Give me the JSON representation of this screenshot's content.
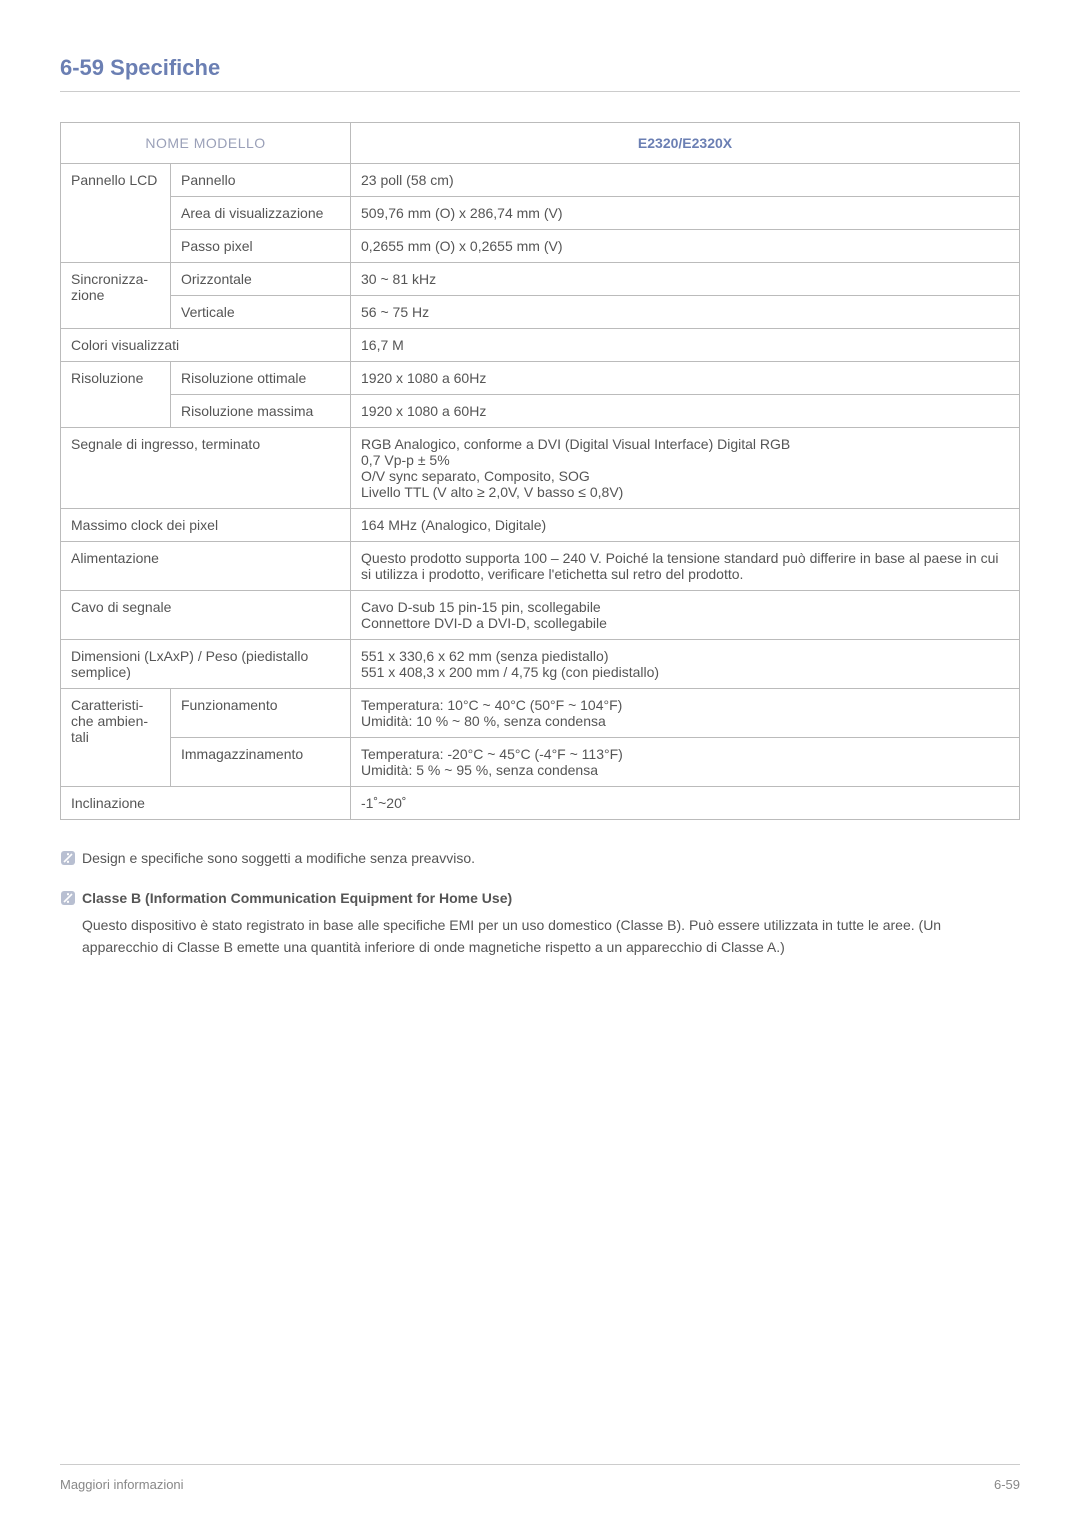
{
  "title": "6-59  Specifiche",
  "table": {
    "header_left": "NOME MODELLO",
    "header_right": "E2320/E2320X",
    "col_widths": {
      "c1": "110px",
      "c2": "180px"
    },
    "border_color": "#bbbbbb",
    "header_left_color": "#9aa0b8",
    "header_right_color": "#6b7fb3",
    "rows": [
      {
        "l1": "Pannello LCD",
        "l1_rowspan": 3,
        "l2": "Pannello",
        "val": "23 poll (58 cm)"
      },
      {
        "l2": "Area di visualizzazione",
        "val": "509,76 mm (O) x 286,74 mm (V)"
      },
      {
        "l2": "Passo pixel",
        "val": "0,2655 mm (O) x 0,2655 mm (V)"
      },
      {
        "l1": "Sincronizza-\nzione",
        "l1_rowspan": 2,
        "l2": "Orizzontale",
        "val": "30 ~ 81 kHz"
      },
      {
        "l2": "Verticale",
        "val": "56 ~ 75 Hz"
      },
      {
        "l1": "Colori visualizzati",
        "l1_colspan": 2,
        "val": "16,7 M"
      },
      {
        "l1": "Risoluzione",
        "l1_rowspan": 2,
        "l2": "Risoluzione ottimale",
        "val": "1920 x 1080 a 60Hz"
      },
      {
        "l2": "Risoluzione massima",
        "val": "1920 x 1080 a 60Hz"
      },
      {
        "l1": "Segnale di ingresso, terminato",
        "l1_colspan": 2,
        "val": "RGB Analogico, conforme a DVI (Digital Visual Interface) Digital RGB\n0,7 Vp-p ± 5%\nO/V sync separato, Composito, SOG\nLivello TTL (V alto ≥ 2,0V, V basso ≤ 0,8V)"
      },
      {
        "l1": "Massimo clock dei pixel",
        "l1_colspan": 2,
        "val": "164 MHz (Analogico, Digitale)"
      },
      {
        "l1": "Alimentazione",
        "l1_colspan": 2,
        "val": "Questo prodotto supporta 100 – 240 V. Poiché la tensione standard può differire in base al paese in cui si utilizza i prodotto, verificare l'etichetta sul retro del prodotto."
      },
      {
        "l1": "Cavo di segnale",
        "l1_colspan": 2,
        "val": "Cavo D-sub 15 pin-15 pin, scollegabile\nConnettore DVI-D a DVI-D, scollegabile"
      },
      {
        "l1": "Dimensioni (LxAxP) / Peso (piedistallo semplice)",
        "l1_colspan": 2,
        "val": "551 x 330,6 x 62 mm (senza piedistallo)\n551 x 408,3 x 200 mm / 4,75 kg (con piedistallo)"
      },
      {
        "l1": "Caratteristi-\nche ambien-\ntali",
        "l1_rowspan": 2,
        "l2": "Funzionamento",
        "val": "Temperatura: 10°C ~ 40°C (50°F ~ 104°F)\nUmidità: 10 % ~ 80 %, senza condensa"
      },
      {
        "l2": "Immagazzinamento",
        "val": "Temperatura: -20°C ~ 45°C (-4°F ~ 113°F)\nUmidità: 5 % ~ 95 %, senza condensa"
      },
      {
        "l1": "Inclinazione",
        "l1_colspan": 2,
        "val": "-1˚~20˚"
      }
    ]
  },
  "notes": [
    {
      "heading": "",
      "body": "Design e specifiche sono soggetti a modifiche senza preavviso."
    },
    {
      "heading": "Classe B (Information Communication Equipment for Home Use)",
      "body": "Questo dispositivo è stato registrato in base alle specifiche EMI per un uso domestico (Classe B). Può essere utilizzata in tutte le aree. (Un apparecchio di Classe B emette una quantità inferiore di onde magnetiche rispetto a un apparecchio di Classe A.)"
    }
  ],
  "note_icon_color": "#b8bfd1",
  "footer": {
    "left": "Maggiori informazioni",
    "right": "6-59"
  },
  "colors": {
    "title": "#6b7fb3",
    "text": "#555555",
    "border": "#cccccc",
    "footer_text": "#888888"
  }
}
